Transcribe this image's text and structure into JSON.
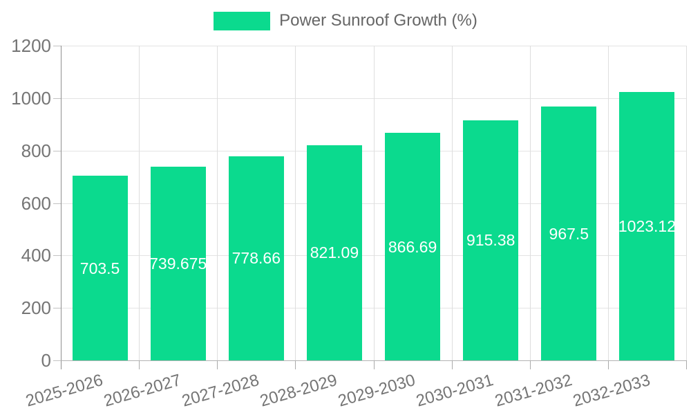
{
  "chart_data": {
    "type": "bar",
    "title": "Power Sunroof Growth (%)",
    "legend": {
      "position": "top",
      "series_label": "Power Sunroof Growth (%)"
    },
    "categories": [
      "2025-2026",
      "2026-2027",
      "2027-2028",
      "2028-2029",
      "2029-2030",
      "2030-2031",
      "2031-2032",
      "2032-2033"
    ],
    "series": [
      {
        "name": "Power Sunroof Growth (%)",
        "values": [
          703.5,
          739.675,
          778.66,
          821.09,
          866.69,
          915.38,
          967.5,
          1023.12
        ],
        "value_labels": [
          "703.5",
          "739.675",
          "778.66",
          "821.09",
          "866.69",
          "915.38",
          "967.5",
          "1023.12"
        ]
      }
    ],
    "xlabel": "",
    "ylabel": "",
    "ylim": [
      0,
      1200
    ],
    "yticks": [
      0,
      200,
      400,
      600,
      800,
      1000,
      1200
    ],
    "ytick_labels": [
      "0",
      "200",
      "400",
      "600",
      "800",
      "1000",
      "1200"
    ],
    "grid": true,
    "colors": {
      "bar": "#0bda8e",
      "value_label_text": "#ffffff",
      "axis_text": "#757575",
      "legend_text": "#666666",
      "gridline": "#e3e3e3",
      "axis_line": "#8f8f8f",
      "background": "#ffffff"
    }
  }
}
